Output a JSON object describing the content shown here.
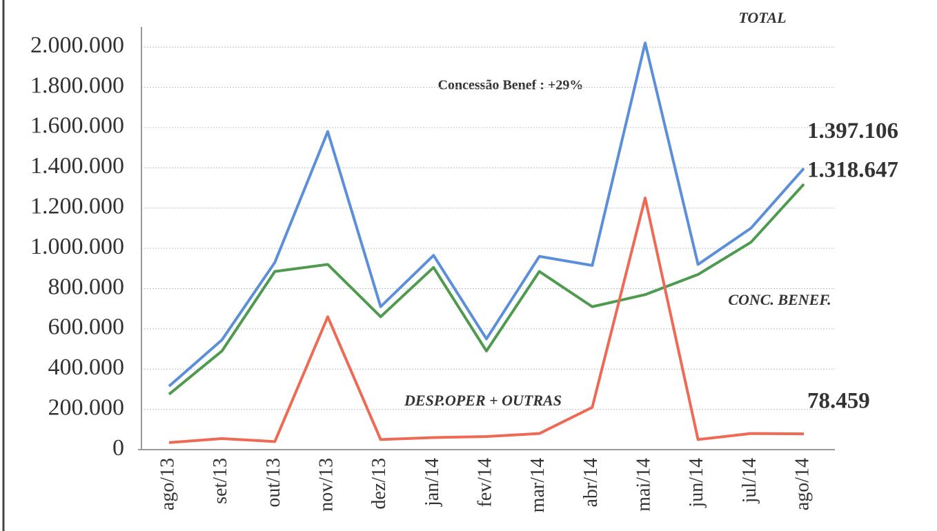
{
  "chart_data": {
    "type": "line",
    "annotation": "Concessão  Benef : +29%",
    "categories": [
      "ago/13",
      "set/13",
      "out/13",
      "nov/13",
      "dez/13",
      "jan/14",
      "fev/14",
      "mar/14",
      "abr/14",
      "mai/14",
      "jun/14",
      "jul/14",
      "ago/14"
    ],
    "series": [
      {
        "name": "TOTAL",
        "color": "#5b8fd9",
        "values": [
          315000,
          545000,
          930000,
          1580000,
          710000,
          965000,
          550000,
          960000,
          915000,
          2020000,
          920000,
          1100000,
          1397106
        ],
        "value_labels": [
          null,
          null,
          null,
          null,
          null,
          null,
          null,
          null,
          null,
          null,
          null,
          null,
          "1.397.106"
        ]
      },
      {
        "name": "CONC. BENEF.",
        "color": "#4e9a4e",
        "values": [
          275000,
          490000,
          885000,
          920000,
          660000,
          905000,
          490000,
          885000,
          710000,
          770000,
          870000,
          1030000,
          1318647
        ],
        "value_labels": [
          null,
          null,
          null,
          null,
          null,
          null,
          null,
          null,
          null,
          null,
          null,
          null,
          "1.318.647"
        ]
      },
      {
        "name": "DESP.OPER + OUTRAS",
        "color": "#ee6a55",
        "values": [
          35000,
          55000,
          40000,
          660000,
          50000,
          60000,
          65000,
          80000,
          210000,
          1250000,
          50000,
          80000,
          78459
        ],
        "value_labels": [
          null,
          null,
          null,
          null,
          null,
          null,
          null,
          null,
          null,
          null,
          null,
          null,
          "78.459"
        ]
      }
    ],
    "ylim": [
      0,
      2100000
    ],
    "yticks": [
      0,
      {
        "value": 200000,
        "label": "200.000"
      },
      {
        "value": 400000,
        "label": "400.000"
      },
      {
        "value": 600000,
        "label": "600.000"
      },
      {
        "value": 800000,
        "label": "800.000"
      },
      {
        "value": 1000000,
        "label": "1.000.000"
      },
      {
        "value": 1200000,
        "label": "1.200.000"
      },
      {
        "value": 1400000,
        "label": "1.400.000"
      },
      {
        "value": 1600000,
        "label": "1.600.000"
      },
      {
        "value": 1800000,
        "label": "1.800.000"
      },
      {
        "value": 2000000,
        "label": "2.000.000"
      }
    ],
    "grid": true
  }
}
